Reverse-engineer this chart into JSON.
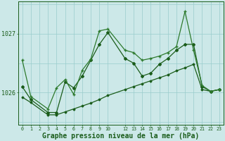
{
  "background_color": "#cce8e8",
  "grid_color": "#99cccc",
  "dark_green": "#1a5c1a",
  "mid_green": "#2d7a2d",
  "xlabel": "Graphe pression niveau de la mer (hPa)",
  "xlabel_fontsize": 7.0,
  "ylim": [
    1025.45,
    1027.55
  ],
  "xlim": [
    -0.5,
    23.5
  ],
  "ytick_positions": [
    1026,
    1027
  ],
  "xtick_positions": [
    0,
    1,
    2,
    3,
    4,
    5,
    6,
    7,
    8,
    9,
    10,
    12,
    13,
    14,
    15,
    16,
    17,
    18,
    19,
    20,
    21,
    22,
    23
  ],
  "s1_x": [
    0,
    1,
    3,
    4,
    5,
    6,
    7,
    8,
    9,
    10,
    12,
    13,
    14,
    15,
    16,
    17,
    18,
    19,
    20,
    21,
    22,
    23
  ],
  "s1_y": [
    1026.55,
    1025.93,
    1025.72,
    1026.08,
    1026.22,
    1025.97,
    1026.38,
    1026.57,
    1027.05,
    1027.08,
    1026.72,
    1026.68,
    1026.55,
    1026.58,
    1026.62,
    1026.68,
    1026.78,
    1027.38,
    1026.72,
    1026.12,
    1026.02,
    1026.05
  ],
  "s2_x": [
    0,
    1,
    3,
    4,
    5,
    6,
    7,
    8,
    9,
    10,
    12,
    13,
    14,
    15,
    16,
    17,
    18,
    19,
    20,
    21,
    22,
    23
  ],
  "s2_y": [
    1026.1,
    1025.88,
    1025.66,
    1025.66,
    1026.18,
    1026.08,
    1026.28,
    1026.55,
    1026.82,
    1027.02,
    1026.58,
    1026.5,
    1026.28,
    1026.33,
    1026.48,
    1026.58,
    1026.72,
    1026.82,
    1026.82,
    1026.1,
    1026.02,
    1026.05
  ],
  "s3_x": [
    0,
    1,
    3,
    4,
    5,
    6,
    7,
    8,
    9,
    10,
    12,
    13,
    14,
    15,
    16,
    17,
    18,
    19,
    20,
    21,
    22,
    23
  ],
  "s3_y": [
    1025.92,
    1025.83,
    1025.62,
    1025.62,
    1025.67,
    1025.72,
    1025.77,
    1025.82,
    1025.88,
    1025.95,
    1026.05,
    1026.1,
    1026.15,
    1026.2,
    1026.25,
    1026.3,
    1026.37,
    1026.42,
    1026.48,
    1026.05,
    1026.02,
    1026.05
  ],
  "hgrid_positions": [
    1025.5,
    1026.0,
    1026.5,
    1027.0,
    1027.5
  ]
}
